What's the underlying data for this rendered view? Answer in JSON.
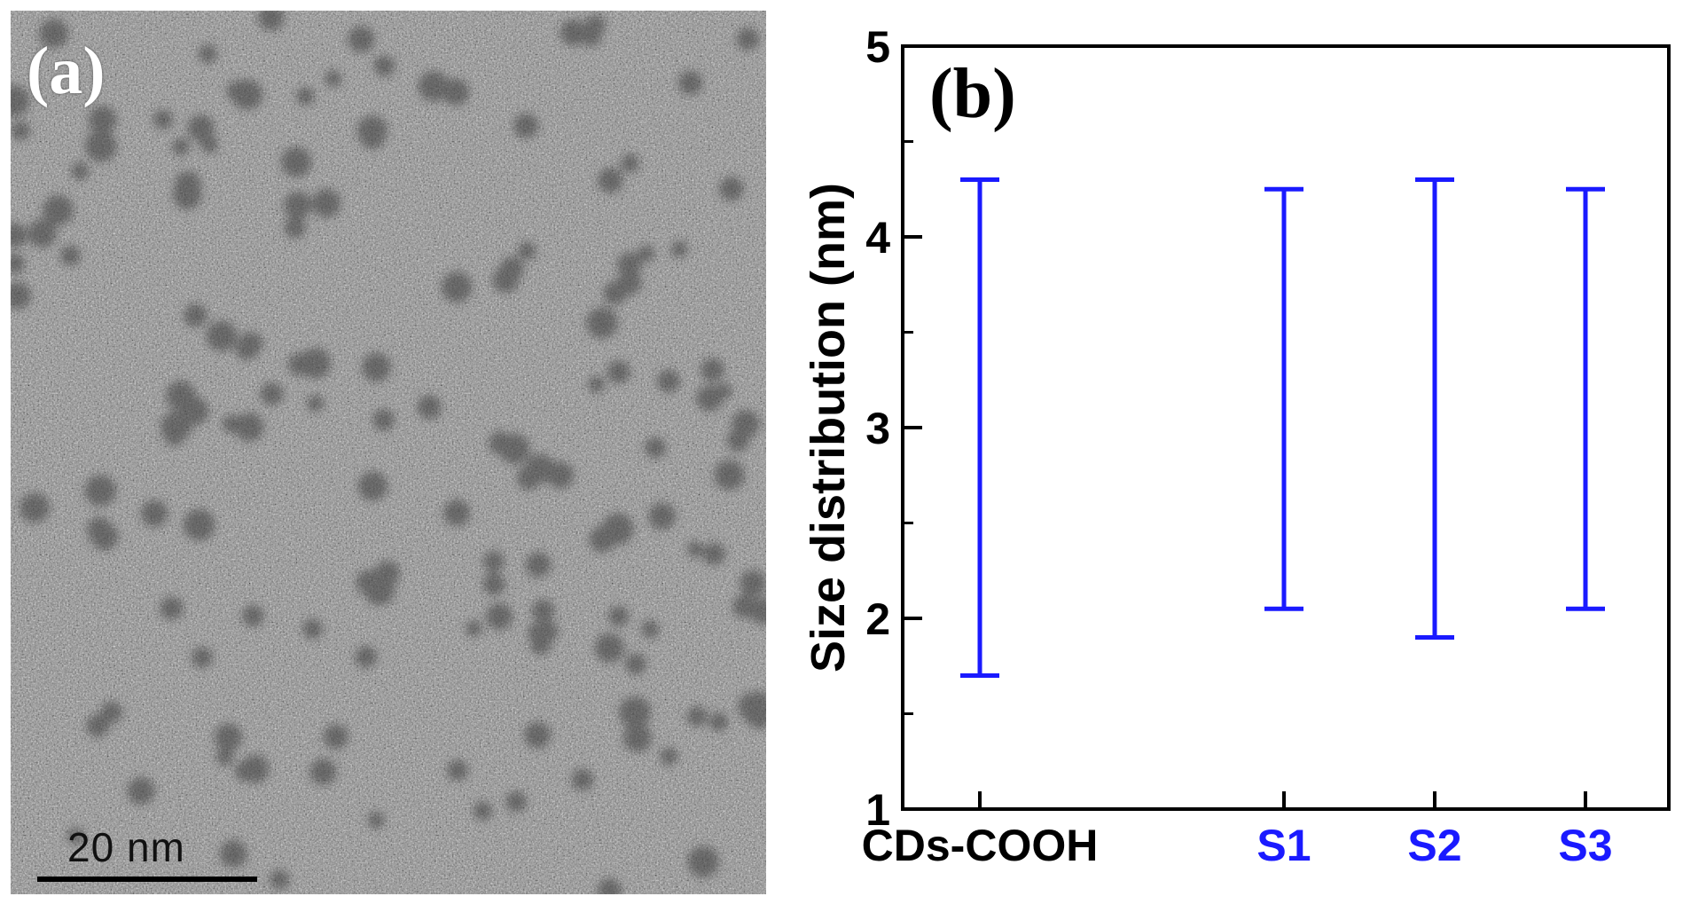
{
  "panel_a": {
    "label": "(a)",
    "scale_bar_text": "20 nm"
  },
  "chart_data": {
    "type": "errorbar-range",
    "panel_label": "(b)",
    "categories": [
      "CDs-COOH",
      "S1",
      "S2",
      "S3"
    ],
    "category_colors": [
      "#000000",
      "#1a1aff",
      "#1a1aff",
      "#1a1aff"
    ],
    "series": [
      {
        "color": "#1a1aff",
        "ranges": [
          {
            "category": "CDs-COOH",
            "low": 1.7,
            "high": 4.3
          },
          {
            "category": "S1",
            "low": 2.05,
            "high": 4.25
          },
          {
            "category": "S2",
            "low": 1.9,
            "high": 4.3
          },
          {
            "category": "S3",
            "low": 2.05,
            "high": 4.25
          }
        ]
      }
    ],
    "xlabel": "",
    "ylabel": "Size distribution (nm)",
    "ylim": [
      1,
      5
    ],
    "yticks": [
      1,
      2,
      3,
      4,
      5
    ],
    "grid": false
  }
}
